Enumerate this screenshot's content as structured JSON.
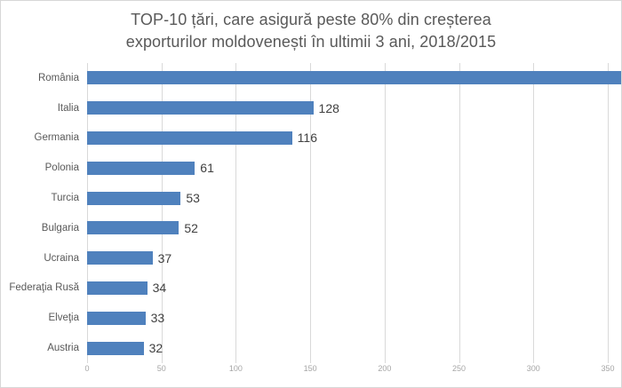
{
  "header": {
    "title_line1": "TOP-10 țări, care asigură peste 80% din creșterea",
    "title_line2": "exporturilor moldovenești în ultimii 3 ani, 2018/2015"
  },
  "chart_data": {
    "type": "bar",
    "orientation": "horizontal",
    "title": "TOP-10 țări, care asigură peste 80% din creșterea exporturilor moldovenești în ultimii 3 ani, 2018/2015",
    "categories": [
      "România",
      "Italia",
      "Germania",
      "Polonia",
      "Turcia",
      "Bulgaria",
      "Ucraina",
      "Federaţia Rusă",
      "Elveţia",
      "Austria"
    ],
    "values": [
      332,
      128,
      116,
      61,
      53,
      52,
      37,
      34,
      33,
      32
    ],
    "xlabel": "",
    "ylabel": "",
    "xlim": [
      0,
      350
    ],
    "xticks": [
      0,
      50,
      100,
      150,
      200,
      250,
      300,
      350
    ],
    "grid": "vertical",
    "legend": "none",
    "value_labels": true
  },
  "colors": {
    "bar": "#4F81BD",
    "title": "#595959",
    "category_label": "#595959",
    "value_label": "#404040",
    "axis_label": "#A6A6A6",
    "gridline": "#D9D9D9",
    "border": "#D7D7D7",
    "background": "#FFFFFF"
  }
}
